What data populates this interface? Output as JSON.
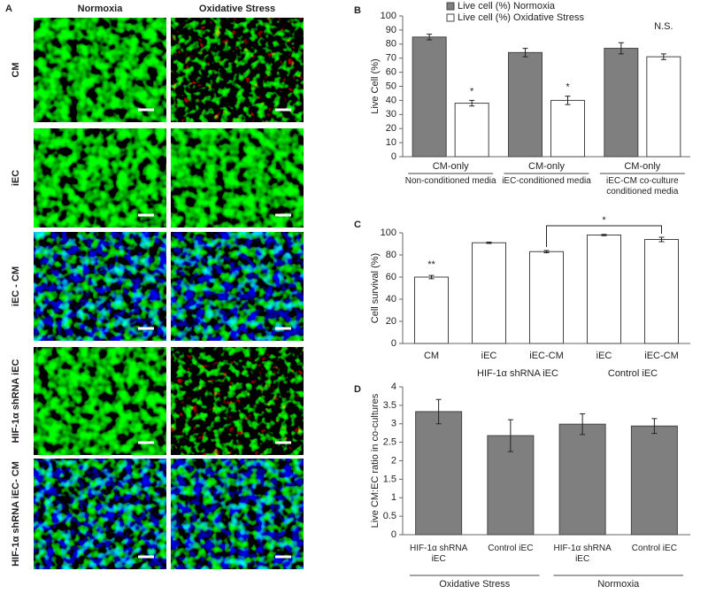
{
  "panel_a": {
    "label": "A",
    "columns": [
      "Normoxia",
      "Oxidative Stress"
    ],
    "rows": [
      "CM",
      "iEC",
      "iEC - CM",
      "HIF-1α shRNA iEC",
      "HIF-1α shRNA iEC- CM"
    ]
  },
  "chart_data": [
    {
      "type": "bar",
      "panel": "B",
      "y_label": "Live Cell (%)",
      "category_headers": [
        "CM-only",
        "CM-only",
        "CM-only"
      ],
      "categories": [
        "Non-conditioned media",
        "iEC-conditioned media",
        "iEC-CM co-culture conditioned media"
      ],
      "series": [
        {
          "name": "Live cell (%) Normoxia",
          "color": "#7f7f7f",
          "values": [
            85,
            74,
            77
          ],
          "errors": [
            2,
            3,
            4
          ]
        },
        {
          "name": "Live cell (%) Oxidative Stress",
          "color": "#ffffff",
          "values": [
            38,
            40,
            71
          ],
          "errors": [
            2,
            3,
            2
          ]
        }
      ],
      "annotations": [
        "*",
        "*",
        "N.S."
      ],
      "ylim": [
        0,
        100
      ],
      "yticks": [
        0,
        10,
        20,
        30,
        40,
        50,
        60,
        70,
        80,
        90,
        100
      ]
    },
    {
      "type": "bar",
      "panel": "C",
      "y_label": "Cell survival (%)",
      "categories": [
        "CM",
        "iEC",
        "iEC-CM",
        "iEC",
        "iEC-CM"
      ],
      "category_groups": [
        "HIF-1α  shRNA iEC",
        "Control iEC"
      ],
      "series": [
        {
          "color": "#ffffff",
          "values": [
            60,
            91,
            83,
            98,
            94
          ],
          "errors": [
            1.5,
            0.6,
            1,
            0.6,
            2
          ]
        }
      ],
      "annotations": [
        "**",
        "*"
      ],
      "ylim": [
        0,
        100
      ],
      "yticks": [
        0,
        20,
        40,
        60,
        80,
        100
      ]
    },
    {
      "type": "bar",
      "panel": "D",
      "y_label": "Live CM:EC ratio in co-cultures",
      "categories": [
        "HIF-1α shRNA iEC",
        "Control iEC",
        "HIF-1α shRNA iEC",
        "Control iEC"
      ],
      "category_groups": [
        "Oxidative Stress",
        "Normoxia"
      ],
      "series": [
        {
          "color": "#7f7f7f",
          "values": [
            3.33,
            2.68,
            2.99,
            2.94
          ],
          "errors": [
            0.33,
            0.43,
            0.28,
            0.2
          ]
        }
      ],
      "ylim": [
        0,
        4
      ],
      "yticks": [
        0,
        0.5,
        1,
        1.5,
        2,
        2.5,
        3,
        3.5,
        4
      ]
    }
  ]
}
